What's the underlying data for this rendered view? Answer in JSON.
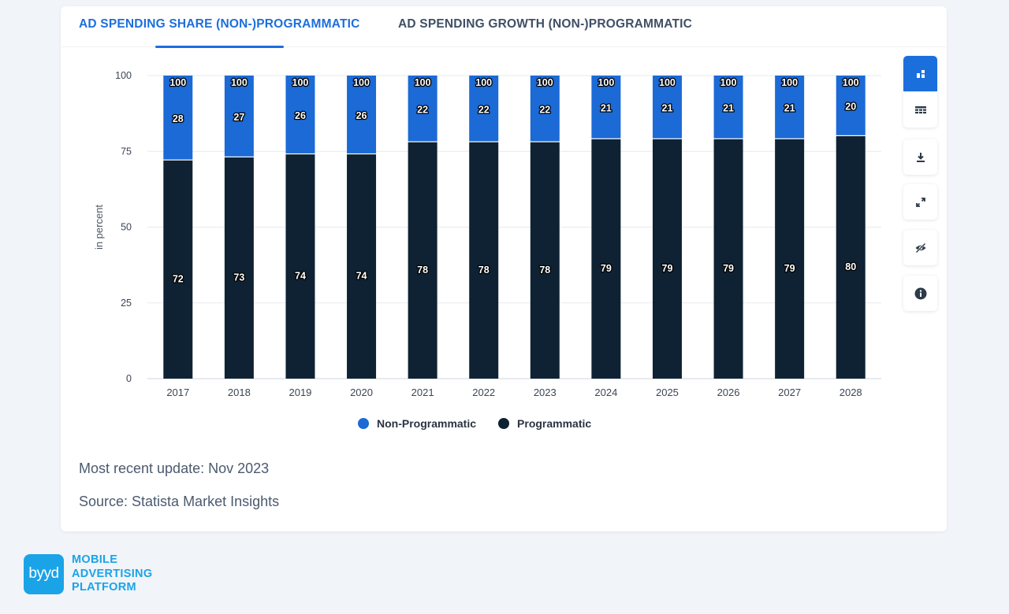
{
  "tabs": [
    {
      "label": "AD SPENDING SHARE (NON-)PROGRAMMATIC"
    },
    {
      "label": "AD SPENDING GROWTH (NON-)PROGRAMMATIC"
    }
  ],
  "chart_data": {
    "type": "bar",
    "stacked": true,
    "title": "",
    "xlabel": "",
    "ylabel": "in percent",
    "ylim": [
      0,
      100
    ],
    "yticks": [
      0,
      25,
      50,
      75,
      100
    ],
    "grid": true,
    "legend_position": "bottom-center",
    "categories": [
      "2017",
      "2018",
      "2019",
      "2020",
      "2021",
      "2022",
      "2023",
      "2024",
      "2025",
      "2026",
      "2027",
      "2028"
    ],
    "totals": [
      100,
      100,
      100,
      100,
      100,
      100,
      100,
      100,
      100,
      100,
      100,
      100
    ],
    "series": [
      {
        "name": "Programmatic",
        "color": "#0f2233",
        "values": [
          72,
          73,
          74,
          74,
          78,
          78,
          78,
          79,
          79,
          79,
          79,
          80
        ]
      },
      {
        "name": "Non-Programmatic",
        "color": "#1b6ad6",
        "values": [
          28,
          27,
          26,
          26,
          22,
          22,
          22,
          21,
          21,
          21,
          21,
          20
        ]
      }
    ]
  },
  "legend": [
    {
      "label": "Non-Programmatic",
      "color": "#1b6ad6"
    },
    {
      "label": "Programmatic",
      "color": "#0f2233"
    }
  ],
  "meta": {
    "update": "Most recent update: Nov 2023",
    "source": "Source: Statista Market Insights"
  },
  "toolbar": [
    {
      "icon": "bar-chart-icon",
      "active": true
    },
    {
      "icon": "table-icon",
      "active": false
    },
    {
      "icon": "download-icon",
      "active": false
    },
    {
      "icon": "expand-icon",
      "active": false
    },
    {
      "icon": "hide-icon",
      "active": false
    },
    {
      "icon": "info-icon",
      "active": false
    }
  ],
  "brand": {
    "badge": "byyd",
    "line1": "MOBILE",
    "line2": "ADVERTISING",
    "line3": "PLATFORM"
  },
  "colors": {
    "accent": "#1b6fdc",
    "background": "#f1f4f8",
    "brand": "#1ba3e8"
  }
}
